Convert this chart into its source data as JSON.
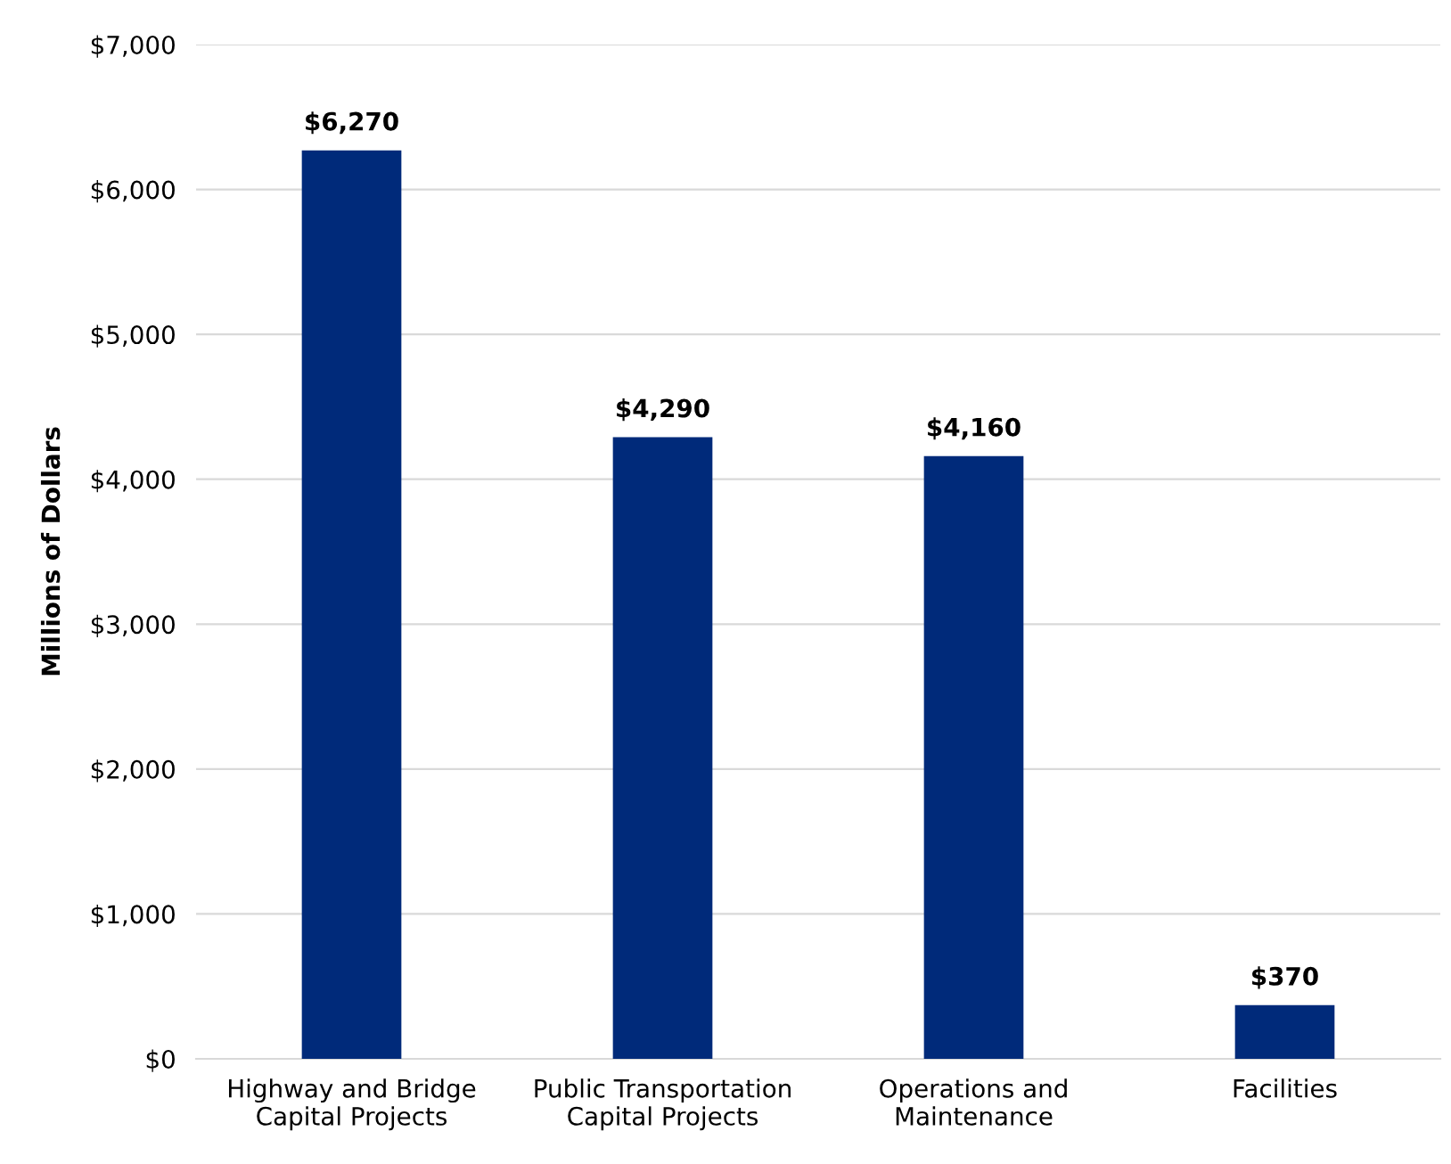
{
  "chart_data": {
    "type": "bar",
    "ylabel": "Millions of Dollars",
    "categories": [
      "Highway and Bridge\nCapital Projects",
      "Public Transportation\nCapital Projects",
      "Operations and\nMaintenance",
      "Facilities"
    ],
    "values": [
      6270,
      4290,
      4160,
      370
    ],
    "value_labels": [
      "$6,270",
      "$4,290",
      "$4,160",
      "$370"
    ],
    "color": "#002a7a",
    "ylim": [
      0,
      7000
    ],
    "yticks": [
      {
        "value": 0,
        "label": "$0"
      },
      {
        "value": 1000,
        "label": "$1,000"
      },
      {
        "value": 2000,
        "label": "$2,000"
      },
      {
        "value": 3000,
        "label": "$3,000"
      },
      {
        "value": 4000,
        "label": "$4,000"
      },
      {
        "value": 5000,
        "label": "$5,000"
      },
      {
        "value": 6000,
        "label": "$6,000"
      },
      {
        "value": 7000,
        "label": "$7,000"
      }
    ],
    "grid": "y"
  }
}
